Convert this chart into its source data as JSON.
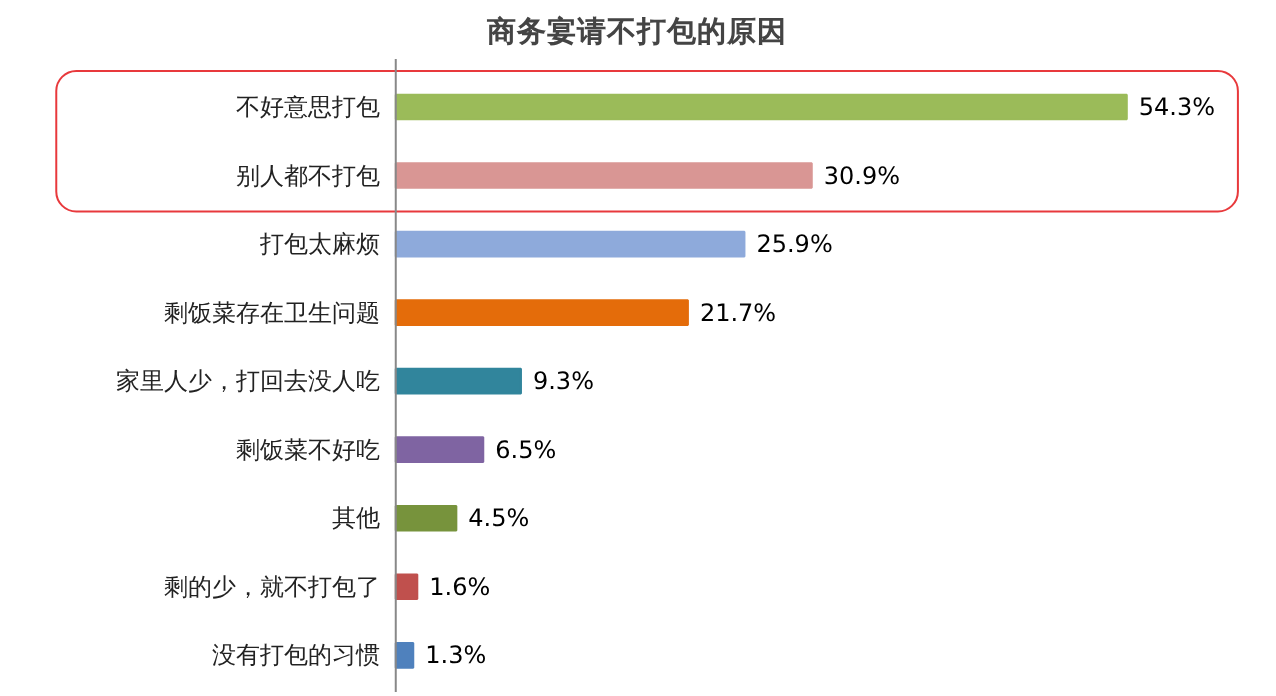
{
  "chart_data": {
    "type": "bar",
    "orientation": "horizontal",
    "title": "商务宴请不打包的原因",
    "categories": [
      "不好意思打包",
      "别人都不打包",
      "打包太麻烦",
      "剩饭菜存在卫生问题",
      "家里人少，打回去没人吃",
      "剩饭菜不好吃",
      "其他",
      "剩的少，就不打包了",
      "没有打包的习惯"
    ],
    "values": [
      54.3,
      30.9,
      25.9,
      21.7,
      9.3,
      6.5,
      4.5,
      1.6,
      1.3
    ],
    "colors": [
      "#9bbb59",
      "#d99694",
      "#8eaadb",
      "#e46c0a",
      "#31859c",
      "#7f64a2",
      "#77933c",
      "#c0504d",
      "#4f81bd"
    ],
    "value_labels": [
      "54.3%",
      "30.9%",
      "25.9%",
      "21.7%",
      "9.3%",
      "6.5%",
      "4.5%",
      "1.6%",
      "1.3%"
    ],
    "grid": false
  }
}
